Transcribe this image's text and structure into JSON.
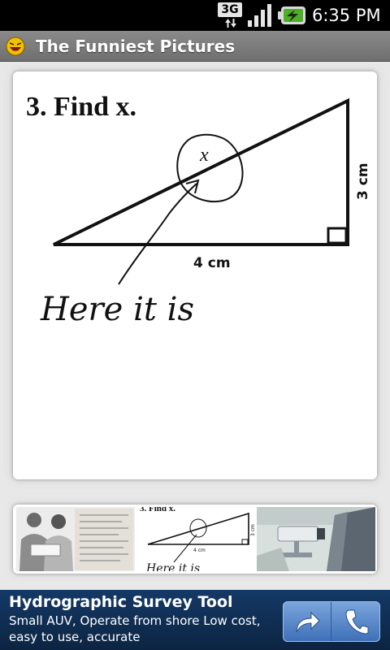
{
  "status_bar": {
    "network_label": "3G",
    "time": "6:35 PM",
    "icons": [
      "3g-data-icon",
      "signal-icon",
      "battery-charging-icon"
    ]
  },
  "app_bar": {
    "title": "The Funniest Pictures",
    "icon": "laughing-face-icon"
  },
  "main_picture": {
    "heading": "3. Find x.",
    "variable_label": "x",
    "side_vertical": "3 cm",
    "side_horizontal": "4 cm",
    "handwritten_answer": "Here it is"
  },
  "thumbnails": [
    {
      "name": "couple-reading-thumbnail"
    },
    {
      "name": "find-x-thumbnail",
      "heading": "3. Find x.",
      "side_vertical": "3 cm",
      "side_horizontal": "4 cm",
      "handwritten_answer": "Here it is"
    },
    {
      "name": "security-camera-thumbnail"
    }
  ],
  "ad": {
    "title": "Hydrographic Survey Tool",
    "line_1": "Small AUV, Operate from shore Low cost,",
    "line_2": "easy to use, accurate",
    "buttons": [
      "share-arrow-icon",
      "phone-icon"
    ],
    "colors": {
      "background": "#0f2d52",
      "button": "#5a8ccc"
    }
  }
}
